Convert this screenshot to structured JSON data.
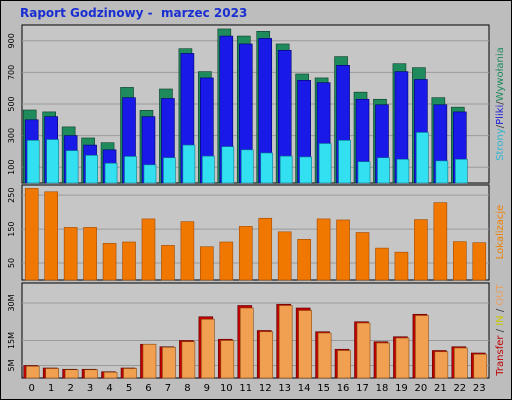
{
  "title": "Raport Godzinowy -  marzec 2023",
  "right_labels": {
    "panel1": [
      {
        "text": "Strony",
        "color": "#32b6d0"
      },
      {
        "text": "/",
        "color": "#404040"
      },
      {
        "text": "Pliki",
        "color": "#2020d8"
      },
      {
        "text": "/",
        "color": "#404040"
      },
      {
        "text": "Wywołania",
        "color": "#1f8a5c"
      }
    ],
    "panel2": [
      {
        "text": "Lokalizacje",
        "color": "#f08000"
      }
    ],
    "panel3": [
      {
        "text": "Transfer",
        "color": "#c00000"
      },
      {
        "text": " / ",
        "color": "#404040"
      },
      {
        "text": "IN",
        "color": "#c8c800"
      },
      {
        "text": " / ",
        "color": "#404040"
      },
      {
        "text": "OUT",
        "color": "#e8a060"
      }
    ]
  },
  "colors": {
    "plot_bg": "#c6c6c6",
    "gridline": "#9a9a9a",
    "hits": "#1f8a5c",
    "files": "#1a1ae8",
    "pages": "#32e0f2",
    "locations": "#f07800",
    "transfer": "#c00000",
    "out": "#f0a050"
  },
  "chart_data": [
    {
      "type": "bar",
      "name": "panel1",
      "categories": [
        "0",
        "1",
        "2",
        "3",
        "4",
        "5",
        "6",
        "7",
        "8",
        "9",
        "10",
        "11",
        "12",
        "13",
        "14",
        "15",
        "16",
        "17",
        "18",
        "19",
        "20",
        "21",
        "22",
        "23"
      ],
      "ylim": [
        0,
        1000
      ],
      "yticks": [
        "100",
        "300",
        "500",
        "700",
        "900"
      ],
      "ytick_values": [
        100,
        300,
        500,
        700,
        900
      ],
      "series": [
        {
          "name": "Wywołania",
          "values": [
            462,
            450,
            355,
            285,
            255,
            605,
            460,
            595,
            850,
            705,
            975,
            930,
            960,
            880,
            690,
            665,
            800,
            575,
            530,
            755,
            730,
            540,
            480,
            0
          ]
        },
        {
          "name": "Pliki",
          "values": [
            400,
            420,
            300,
            240,
            210,
            540,
            420,
            535,
            820,
            665,
            930,
            880,
            915,
            840,
            650,
            635,
            745,
            530,
            495,
            705,
            655,
            495,
            450,
            0
          ]
        },
        {
          "name": "Strony",
          "values": [
            270,
            275,
            205,
            175,
            125,
            168,
            115,
            160,
            240,
            170,
            230,
            210,
            190,
            170,
            165,
            250,
            270,
            135,
            160,
            150,
            320,
            140,
            150,
            0
          ]
        }
      ]
    },
    {
      "type": "bar",
      "name": "panel2",
      "categories": [
        "0",
        "1",
        "2",
        "3",
        "4",
        "5",
        "6",
        "7",
        "8",
        "9",
        "10",
        "11",
        "12",
        "13",
        "14",
        "15",
        "16",
        "17",
        "18",
        "19",
        "20",
        "21",
        "22",
        "23"
      ],
      "ylim": [
        0,
        280
      ],
      "yticks": [
        "50",
        "150",
        "250"
      ],
      "ytick_values": [
        50,
        150,
        250
      ],
      "series": [
        {
          "name": "Lokalizacje",
          "values": [
            270,
            260,
            155,
            155,
            108,
            112,
            180,
            102,
            172,
            98,
            112,
            158,
            182,
            142,
            120,
            180,
            177,
            140,
            94,
            82,
            178,
            228,
            113,
            110
          ]
        }
      ]
    },
    {
      "type": "bar",
      "name": "panel3",
      "categories": [
        "0",
        "1",
        "2",
        "3",
        "4",
        "5",
        "6",
        "7",
        "8",
        "9",
        "10",
        "11",
        "12",
        "13",
        "14",
        "15",
        "16",
        "17",
        "18",
        "19",
        "20",
        "21",
        "22",
        "23"
      ],
      "ylim": [
        0,
        38
      ],
      "yticks": [
        "5M",
        "15M",
        "30M"
      ],
      "ytick_values": [
        5,
        15,
        30
      ],
      "series": [
        {
          "name": "Transfer",
          "values": [
            5.0,
            4.0,
            3.5,
            3.5,
            2.5,
            4.0,
            13.5,
            12.5,
            15.0,
            24.5,
            15.5,
            29.0,
            19.0,
            29.5,
            28.0,
            18.5,
            11.5,
            22.5,
            14.5,
            16.5,
            25.5,
            11.0,
            12.5,
            10.0
          ]
        },
        {
          "name": "OUT",
          "values": [
            4.7,
            3.8,
            3.3,
            3.3,
            2.3,
            3.8,
            13.5,
            12.3,
            14.5,
            23.5,
            15.0,
            28.0,
            18.5,
            29.0,
            27.0,
            18.0,
            11.0,
            22.0,
            14.0,
            16.0,
            25.0,
            10.5,
            12.0,
            9.5
          ]
        }
      ]
    }
  ]
}
